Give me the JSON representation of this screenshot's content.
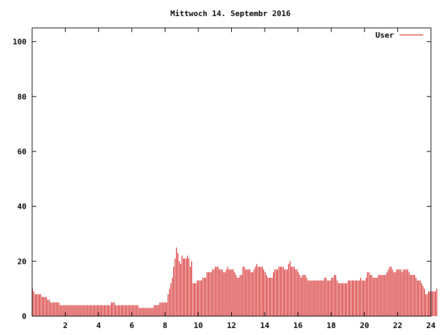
{
  "chart_data": {
    "type": "bar",
    "title": "Mittwoch 14. Septembr 2016",
    "xlabel": "",
    "ylabel": "",
    "xlim": [
      0,
      24
    ],
    "ylim": [
      0,
      105
    ],
    "x_ticks": [
      2,
      4,
      6,
      8,
      10,
      12,
      14,
      16,
      18,
      20,
      22,
      24
    ],
    "y_ticks": [
      0,
      20,
      40,
      60,
      80,
      100
    ],
    "grid": false,
    "legend_position": "top-right",
    "series": [
      {
        "name": "User",
        "color": "#cc0000",
        "values_per_5min": [
          10,
          9,
          8,
          8,
          8,
          8,
          8,
          7,
          7,
          7,
          7,
          6,
          6,
          5,
          5,
          5,
          5,
          5,
          5,
          5,
          4,
          4,
          4,
          4,
          4,
          4,
          4,
          4,
          4,
          4,
          4,
          4,
          4,
          4,
          4,
          4,
          4,
          4,
          4,
          4,
          4,
          4,
          4,
          4,
          4,
          4,
          4,
          4,
          4,
          4,
          4,
          4,
          4,
          4,
          4,
          4,
          4,
          5,
          5,
          5,
          4,
          4,
          4,
          4,
          4,
          4,
          4,
          4,
          4,
          4,
          4,
          4,
          4,
          4,
          4,
          4,
          4,
          3,
          3,
          3,
          3,
          3,
          3,
          3,
          3,
          3,
          3,
          3,
          4,
          4,
          4,
          4,
          5,
          5,
          5,
          5,
          5,
          5,
          8,
          10,
          12,
          14,
          18,
          21,
          25,
          23,
          20,
          19,
          22,
          21,
          21,
          21,
          22,
          21,
          18,
          20,
          12,
          12,
          12,
          13,
          13,
          13,
          13,
          14,
          14,
          14,
          16,
          16,
          16,
          16,
          17,
          17,
          18,
          18,
          18,
          17,
          17,
          17,
          16,
          16,
          17,
          18,
          17,
          17,
          17,
          17,
          16,
          15,
          14,
          14,
          15,
          15,
          18,
          18,
          17,
          17,
          17,
          17,
          16,
          16,
          17,
          18,
          19,
          18,
          18,
          18,
          18,
          17,
          16,
          15,
          14,
          14,
          14,
          14,
          16,
          17,
          17,
          17,
          18,
          18,
          18,
          18,
          17,
          17,
          17,
          19,
          20,
          18,
          18,
          18,
          17,
          17,
          16,
          15,
          14,
          15,
          15,
          15,
          14,
          13,
          13,
          13,
          13,
          13,
          13,
          13,
          13,
          13,
          13,
          13,
          13,
          14,
          14,
          13,
          13,
          13,
          14,
          14,
          15,
          15,
          13,
          12,
          12,
          12,
          12,
          12,
          12,
          12,
          13,
          13,
          13,
          13,
          13,
          13,
          13,
          13,
          13,
          14,
          13,
          13,
          13,
          14,
          16,
          16,
          15,
          15,
          14,
          14,
          14,
          14,
          15,
          15,
          15,
          15,
          15,
          15,
          16,
          17,
          18,
          18,
          17,
          16,
          16,
          17,
          17,
          17,
          17,
          16,
          17,
          17,
          17,
          17,
          16,
          15,
          15,
          15,
          15,
          14,
          13,
          13,
          13,
          12,
          11,
          10,
          8,
          8,
          9,
          9,
          9,
          9,
          9,
          9,
          10
        ]
      }
    ]
  }
}
